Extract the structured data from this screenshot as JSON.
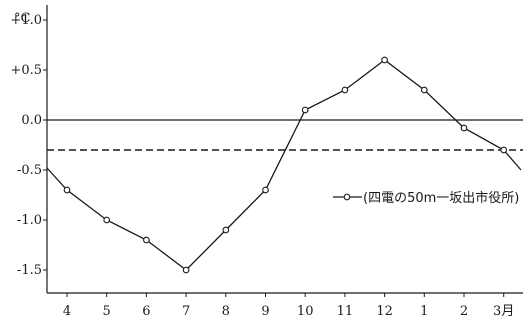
{
  "chart_data": {
    "type": "line",
    "unit_label": "°C",
    "x_tick_labels": [
      "4",
      "5",
      "6",
      "7",
      "8",
      "9",
      "10",
      "11",
      "12",
      "1",
      "2",
      "3月"
    ],
    "y_tick_labels": [
      "+1.0",
      "+0.5",
      "0.0",
      "-0.5",
      "-1.0",
      "-1.5"
    ],
    "y_ticks": [
      1.0,
      0.5,
      0.0,
      -0.5,
      -1.0,
      -1.5
    ],
    "ylim": [
      -1.75,
      1.2
    ],
    "series": [
      {
        "name": "(四電の50m一坂出市役所)",
        "x": [
          "3",
          "4",
          "5",
          "6",
          "7",
          "8",
          "9",
          "10",
          "11",
          "12",
          "1",
          "2",
          "3月",
          "3月+"
        ],
        "values": [
          -0.48,
          -0.7,
          -1.0,
          -1.2,
          -1.5,
          -1.1,
          -0.7,
          0.1,
          0.3,
          0.6,
          0.3,
          -0.08,
          -0.3,
          -0.5
        ]
      }
    ],
    "reference_lines": [
      {
        "value": 0.0,
        "style": "solid"
      },
      {
        "value": -0.3,
        "style": "dashed"
      }
    ],
    "grid": false,
    "legend_position": "right"
  },
  "colors": {
    "ink": "#1a1a1a",
    "background": "#ffffff"
  }
}
